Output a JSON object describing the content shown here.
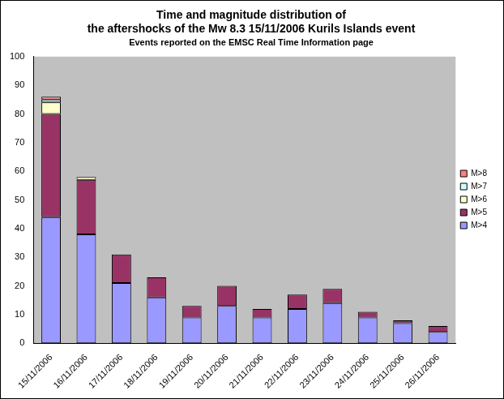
{
  "chart_data": {
    "type": "bar",
    "title": [
      "Time and magnitude distribution of",
      "the aftershocks of the Mw 8.3 15/11/2006 Kurils Islands event"
    ],
    "subtitle": "Events reported on the EMSC Real Time Information page",
    "categories": [
      "15/11/2006",
      "16/11/2006",
      "17/11/2006",
      "18/11/2006",
      "19/11/2006",
      "20/11/2006",
      "21/11/2006",
      "22/11/2006",
      "23/11/2006",
      "24/11/2006",
      "25/11/2006",
      "26/11/2006"
    ],
    "series": [
      {
        "name": "M>4",
        "color": "#9999ff",
        "values": [
          44,
          38,
          21,
          16,
          9,
          13,
          9,
          12,
          14,
          9,
          7,
          4
        ]
      },
      {
        "name": "M>5",
        "color": "#993366",
        "values": [
          36,
          19,
          10,
          7,
          4,
          7,
          3,
          5,
          5,
          2,
          1,
          2
        ]
      },
      {
        "name": "M>6",
        "color": "#ffffcc",
        "values": [
          4,
          1,
          0,
          0,
          0,
          0,
          0,
          0,
          0,
          0,
          0,
          0
        ]
      },
      {
        "name": "M>7",
        "color": "#ccffff",
        "values": [
          1,
          0,
          0,
          0,
          0,
          0,
          0,
          0,
          0,
          0,
          0,
          0
        ]
      },
      {
        "name": "M>8",
        "color": "#ff8080",
        "values": [
          1,
          0,
          0,
          0,
          0,
          0,
          0,
          0,
          0,
          0,
          0,
          0
        ]
      }
    ],
    "stacked": true,
    "ylim": [
      0,
      100
    ],
    "yticks": [
      0,
      10,
      20,
      30,
      40,
      50,
      60,
      70,
      80,
      90,
      100
    ],
    "grid": false,
    "legend": "right"
  }
}
